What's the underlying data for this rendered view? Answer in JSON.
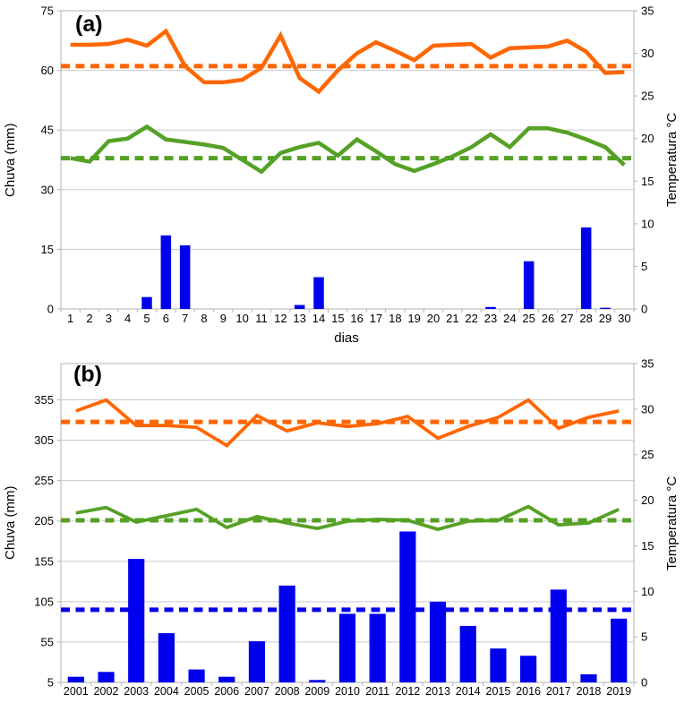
{
  "figure": {
    "background": "#FFFFFF"
  },
  "colors": {
    "rain": "#0000EE",
    "temp_max": "#FF6600",
    "temp_min": "#55A126",
    "grid": "#C9C9C9",
    "axis": "#B3B3B3",
    "text": "#000000"
  },
  "chart_data": [
    {
      "type": "bar",
      "subtype": "combo bar+line, dual y-axis",
      "panel_label": "(a)",
      "title": "",
      "xlabel": "dias",
      "ylabel_left": "Chuva (mm)",
      "ylabel_right": "Temperatura °C",
      "grid": "horizontal gridlines at left-axis ticks",
      "legend": "none",
      "axis_left": {
        "min": 0,
        "max": 75,
        "ticks": [
          0,
          15,
          30,
          45,
          60,
          75
        ]
      },
      "axis_right": {
        "min": 0,
        "max": 35,
        "ticks": [
          0,
          5,
          10,
          15,
          20,
          25,
          30,
          35
        ]
      },
      "categories": [
        "1",
        "2",
        "3",
        "4",
        "5",
        "6",
        "7",
        "8",
        "9",
        "10",
        "11",
        "12",
        "13",
        "14",
        "15",
        "16",
        "17",
        "18",
        "19",
        "20",
        "21",
        "22",
        "23",
        "24",
        "25",
        "26",
        "27",
        "28",
        "29",
        "30"
      ],
      "series": [
        {
          "name": "chuva-bars",
          "kind": "bar",
          "axis": "left",
          "color_key": "rain",
          "values": [
            0,
            0,
            0,
            0,
            3,
            18.5,
            16,
            0,
            0,
            0,
            0,
            0,
            1,
            8,
            0,
            0,
            0,
            0,
            0,
            0,
            0,
            0,
            0.5,
            0,
            12,
            0,
            0,
            20.5,
            0.3,
            0
          ]
        },
        {
          "name": "temperatura-maxima",
          "kind": "line",
          "axis": "right",
          "color_key": "temp_max",
          "values": [
            31,
            31,
            31.1,
            31.6,
            30.9,
            32.6,
            28.5,
            26.6,
            26.6,
            26.9,
            28.3,
            32.1,
            27.1,
            25.5,
            28,
            30,
            31.3,
            30.3,
            29.2,
            30.9,
            31,
            31.1,
            29.5,
            30.6,
            30.7,
            30.8,
            31.5,
            30.2,
            27.7,
            27.8
          ]
        },
        {
          "name": "temperatura-minima",
          "kind": "line",
          "axis": "right",
          "color_key": "temp_min",
          "values": [
            17.7,
            17.3,
            19.7,
            20,
            21.4,
            19.9,
            19.6,
            19.3,
            18.9,
            17.5,
            16.1,
            18.3,
            19,
            19.5,
            18,
            19.9,
            18.5,
            17,
            16.2,
            17,
            17.9,
            19,
            20.5,
            19,
            21.2,
            21.2,
            20.7,
            19.9,
            19,
            16.9
          ]
        },
        {
          "name": "media-temp-maxima",
          "kind": "mean-dashed",
          "axis": "right",
          "color_key": "temp_max",
          "value": 28.5
        },
        {
          "name": "media-temp-minima",
          "kind": "mean-dashed",
          "axis": "right",
          "color_key": "temp_min",
          "value": 17.7
        }
      ]
    },
    {
      "type": "bar",
      "subtype": "combo bar+line, dual y-axis",
      "panel_label": "(b)",
      "title": "",
      "xlabel": "",
      "ylabel_left": "Chuva (mm)",
      "ylabel_right": "Temperatura °C",
      "grid": "horizontal gridlines at left-axis ticks",
      "legend": "none",
      "axis_left": {
        "min": 5,
        "max": 400,
        "ticks": [
          5,
          55,
          105,
          155,
          205,
          255,
          305,
          355
        ]
      },
      "axis_right": {
        "min": 0,
        "max": 35,
        "ticks": [
          0,
          5,
          10,
          15,
          20,
          25,
          30,
          35
        ]
      },
      "categories": [
        "2001",
        "2002",
        "2003",
        "2004",
        "2005",
        "2006",
        "2007",
        "2008",
        "2009",
        "2010",
        "2011",
        "2012",
        "2013",
        "2014",
        "2015",
        "2016",
        "2017",
        "2018",
        "2019"
      ],
      "series": [
        {
          "name": "chuva-bars",
          "kind": "bar",
          "axis": "left",
          "color_key": "rain",
          "values": [
            12,
            18,
            158,
            66,
            21,
            12,
            56,
            125,
            8,
            90,
            90,
            192,
            105,
            75,
            47,
            38,
            120,
            15,
            84
          ]
        },
        {
          "name": "temperatura-maxima",
          "kind": "line",
          "axis": "right",
          "color_key": "temp_max",
          "values": [
            29.8,
            31,
            28.2,
            28.2,
            28,
            26,
            29.3,
            27.6,
            28.5,
            28.1,
            28.4,
            29.2,
            26.8,
            28.1,
            29.1,
            31,
            27.9,
            29.1,
            29.8
          ]
        },
        {
          "name": "temperatura-minima",
          "kind": "line",
          "axis": "right",
          "color_key": "temp_min",
          "values": [
            18.6,
            19.2,
            17.6,
            18.3,
            19,
            17,
            18.2,
            17.5,
            16.9,
            17.7,
            17.9,
            17.8,
            16.8,
            17.7,
            17.8,
            19.3,
            17.3,
            17.5,
            19
          ]
        },
        {
          "name": "media-temp-maxima",
          "kind": "mean-dashed",
          "axis": "right",
          "color_key": "temp_max",
          "value": 28.6
        },
        {
          "name": "media-temp-minima",
          "kind": "mean-dashed",
          "axis": "right",
          "color_key": "temp_min",
          "value": 17.8
        },
        {
          "name": "media-chuva",
          "kind": "mean-dashed",
          "axis": "left",
          "color_key": "rain",
          "value": 95
        }
      ]
    }
  ]
}
